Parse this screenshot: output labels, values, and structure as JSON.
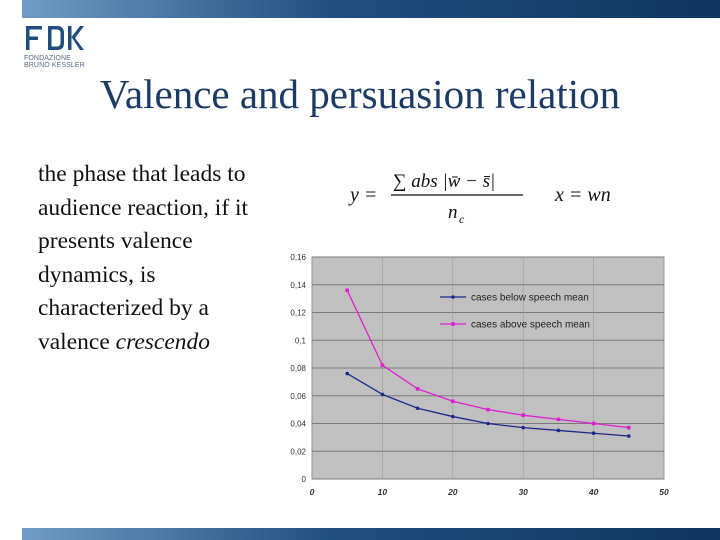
{
  "logo": {
    "name": "fbk-logo",
    "lines": [
      "FONDAZIONE",
      "BRUNO KESSLER"
    ]
  },
  "slide": {
    "title": "Valence and persuasion relation",
    "body_main": "the phase that leads to audience reaction, if it presents valence dynamics, is characterized by a valence ",
    "body_em": "crescendo"
  },
  "formula": {
    "y_lhs": "y =",
    "numerator": "∑ abs |w̄ − s̄|",
    "denominator": "n",
    "denominator_sub": "c",
    "x_eq": "x = wn"
  },
  "colors": {
    "title": "#1b3b66",
    "bar": "#1f4e7e",
    "plot_bg": "#c0c0c0",
    "series_below": "#1a2a8a",
    "series_above": "#e020d0"
  },
  "chart_data": {
    "type": "line",
    "x_ticks": [
      0,
      10,
      20,
      30,
      40,
      50
    ],
    "y_ticks": [
      0,
      0.02,
      0.04,
      0.06,
      0.08,
      0.1,
      0.12,
      0.14,
      0.16
    ],
    "x_tick_labels": [
      "0",
      "10",
      "20",
      "30",
      "40",
      "50"
    ],
    "y_tick_labels": [
      "0",
      "0,02",
      "0,04",
      "0,06",
      "0,08",
      "0,1",
      "0,12",
      "0,14",
      "0,16"
    ],
    "xlim": [
      0,
      50
    ],
    "ylim": [
      0,
      0.16
    ],
    "grid": true,
    "legend_position": "top-right",
    "series": [
      {
        "name": "cases below speech mean",
        "color": "#1a2a8a",
        "x": [
          5,
          10,
          15,
          20,
          25,
          30,
          35,
          40,
          45
        ],
        "y": [
          0.076,
          0.061,
          0.051,
          0.045,
          0.04,
          0.037,
          0.035,
          0.033,
          0.031
        ]
      },
      {
        "name": "cases above speech mean",
        "color": "#e020d0",
        "x": [
          5,
          10,
          15,
          20,
          25,
          30,
          35,
          40,
          45
        ],
        "y": [
          0.136,
          0.082,
          0.065,
          0.056,
          0.05,
          0.046,
          0.043,
          0.04,
          0.037
        ]
      }
    ]
  }
}
